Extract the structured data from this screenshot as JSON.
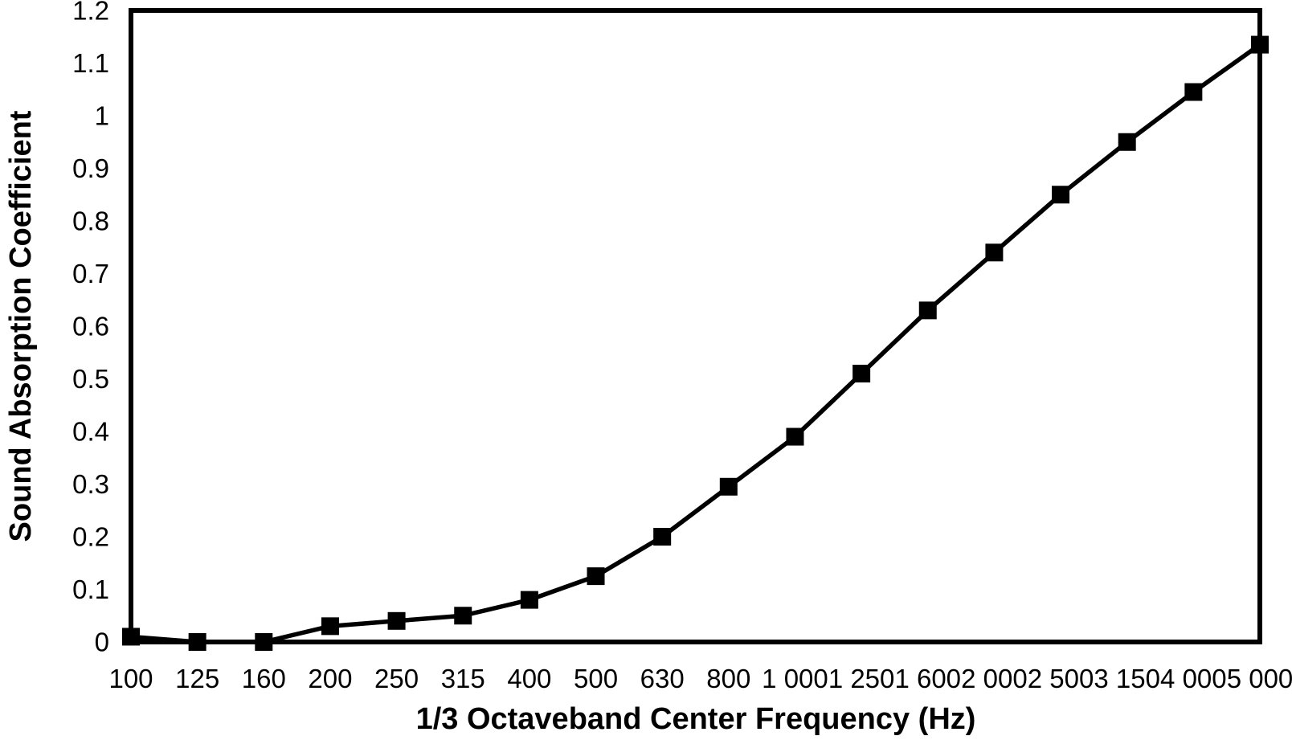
{
  "page": {
    "background_color": "#ffffff"
  },
  "chart_data": {
    "type": "line",
    "title": "",
    "xlabel": "1/3 Octaveband Center Frequency (Hz)",
    "ylabel": "Sound Absorption Coefficient",
    "categories": [
      "100",
      "125",
      "160",
      "200",
      "250",
      "315",
      "400",
      "500",
      "630",
      "800",
      "1 000",
      "1 250",
      "1 600",
      "2 000",
      "2 500",
      "3 150",
      "4 000",
      "5 000"
    ],
    "values": [
      0.01,
      0.0,
      0.0,
      0.03,
      0.04,
      0.05,
      0.08,
      0.125,
      0.2,
      0.295,
      0.39,
      0.51,
      0.63,
      0.74,
      0.85,
      0.95,
      1.045,
      1.135
    ],
    "y_tick_labels": [
      "0",
      "0.1",
      "0.2",
      "0.3",
      "0.4",
      "0.5",
      "0.6",
      "0.7",
      "0.8",
      "0.9",
      "1",
      "1.1",
      "1.2"
    ],
    "ylim": [
      0,
      1.2
    ],
    "grid": false,
    "legend": false,
    "plot_border": true,
    "marker_shape": "square",
    "line_color": "#000000",
    "marker_color": "#000000",
    "axis_color": "#000000",
    "text_color": "#000000"
  }
}
